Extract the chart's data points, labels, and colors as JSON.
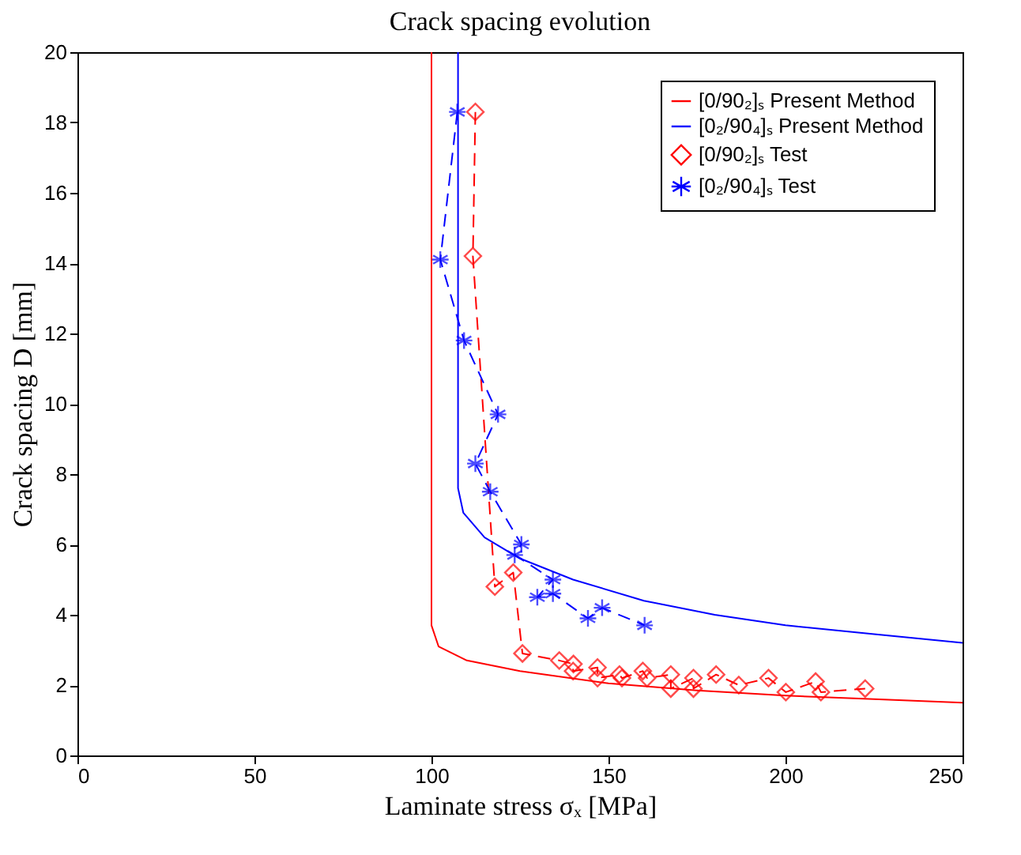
{
  "chart_data": {
    "type": "line",
    "title": "Crack spacing evolution",
    "xlabel": "Laminate stress σₓ [MPa]",
    "ylabel": "Crack spacing D [mm]",
    "xlim": [
      0,
      250
    ],
    "ylim": [
      0,
      20
    ],
    "xticks": [
      0,
      50,
      100,
      150,
      200,
      250
    ],
    "yticks": [
      0,
      2,
      4,
      6,
      8,
      10,
      12,
      14,
      16,
      18,
      20
    ],
    "grid": false,
    "legend": "top right",
    "series": [
      {
        "name": "[0/90₂]ₛ Present Method",
        "color": "#ff0000",
        "line_style": "solid",
        "marker": "none",
        "x": [
          100,
          100,
          102,
          110,
          125,
          150,
          175,
          200,
          225,
          250
        ],
        "values": [
          20,
          3.7,
          3.1,
          2.7,
          2.4,
          2.05,
          1.85,
          1.7,
          1.6,
          1.5
        ]
      },
      {
        "name": "[0₂/90₄]ₛ Present Method",
        "color": "#0000ff",
        "line_style": "solid",
        "marker": "none",
        "x": [
          107.5,
          107.5,
          109,
          115,
          125,
          140,
          160,
          180,
          200,
          225,
          250
        ],
        "values": [
          20,
          7.6,
          6.9,
          6.2,
          5.6,
          5.0,
          4.4,
          4.0,
          3.7,
          3.45,
          3.2
        ]
      },
      {
        "name": "[0/90₂]ₛ Test",
        "color": "#ff0000",
        "line_style": "dashed",
        "marker": "diamond",
        "x": [
          112.4,
          111.7,
          117.9,
          123.1,
          125.7,
          136.1,
          140.1,
          140,
          146.9,
          146.9,
          153.1,
          153.8,
          159.7,
          160.9,
          167.6,
          167.6,
          174,
          174,
          180.4,
          186.8,
          195.2,
          200.1,
          208.5,
          210,
          222.5
        ],
        "values": [
          18.3,
          14.2,
          4.8,
          5.2,
          2.9,
          2.7,
          2.6,
          2.4,
          2.5,
          2.2,
          2.3,
          2.2,
          2.4,
          2.2,
          2.3,
          1.9,
          2.2,
          1.9,
          2.3,
          2.0,
          2.2,
          1.8,
          2.1,
          1.8,
          1.9
        ]
      },
      {
        "name": "[0₂/90₄]ₛ Test",
        "color": "#0000ff",
        "line_style": "dashed",
        "marker": "cross",
        "x": [
          107.3,
          102.5,
          109.2,
          118.8,
          112.4,
          116.6,
          125.4,
          123.5,
          134.3,
          129.9,
          134.3,
          144.2,
          148.2,
          160.2
        ],
        "values": [
          18.3,
          14.1,
          11.8,
          9.7,
          8.3,
          7.5,
          6.0,
          5.7,
          5.0,
          4.5,
          4.6,
          3.9,
          4.2,
          3.7
        ]
      }
    ]
  }
}
